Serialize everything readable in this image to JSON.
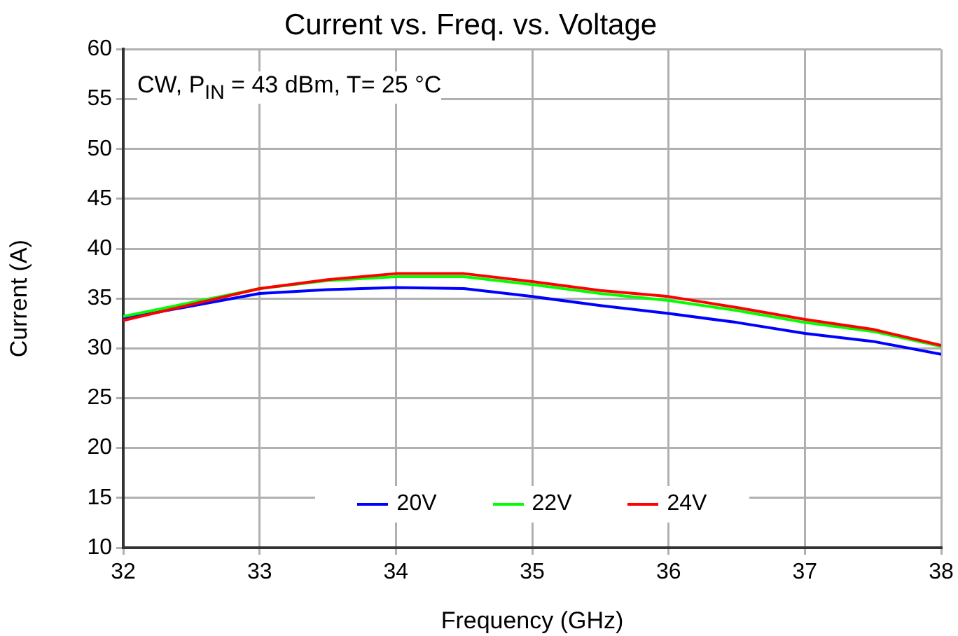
{
  "chart_data": {
    "type": "line",
    "title": "Current vs. Freq. vs. Voltage",
    "xlabel": "Frequency (GHz)",
    "ylabel": "Current (A)",
    "annotations": [
      "CW, P$_{IN}$ = 43 dBm, T= 25 °C"
    ],
    "x": [
      32,
      33,
      33.5,
      34,
      34.5,
      35,
      35.5,
      36,
      36.5,
      37,
      37.5,
      38
    ],
    "series": [
      {
        "name": "20V",
        "color": "#0000ff",
        "values": [
          33.0,
          35.5,
          35.9,
          36.1,
          36.0,
          35.2,
          34.3,
          33.5,
          32.6,
          31.5,
          30.7,
          29.4
        ]
      },
      {
        "name": "22V",
        "color": "#00ff00",
        "values": [
          33.2,
          36.0,
          36.8,
          37.2,
          37.2,
          36.4,
          35.5,
          34.8,
          33.8,
          32.6,
          31.7,
          30.2
        ]
      },
      {
        "name": "24V",
        "color": "#ff0000",
        "values": [
          32.8,
          36.0,
          36.9,
          37.5,
          37.5,
          36.7,
          35.8,
          35.2,
          34.1,
          32.9,
          31.9,
          30.3
        ]
      }
    ],
    "xlim": [
      32,
      38
    ],
    "xticks": [
      32,
      33,
      34,
      35,
      36,
      37,
      38
    ],
    "ylim": [
      10,
      60
    ],
    "yticks": [
      10,
      15,
      20,
      25,
      30,
      35,
      40,
      45,
      50,
      55,
      60
    ],
    "grid": true,
    "legend": "bottom",
    "marker": "none",
    "line_style": "solid"
  }
}
